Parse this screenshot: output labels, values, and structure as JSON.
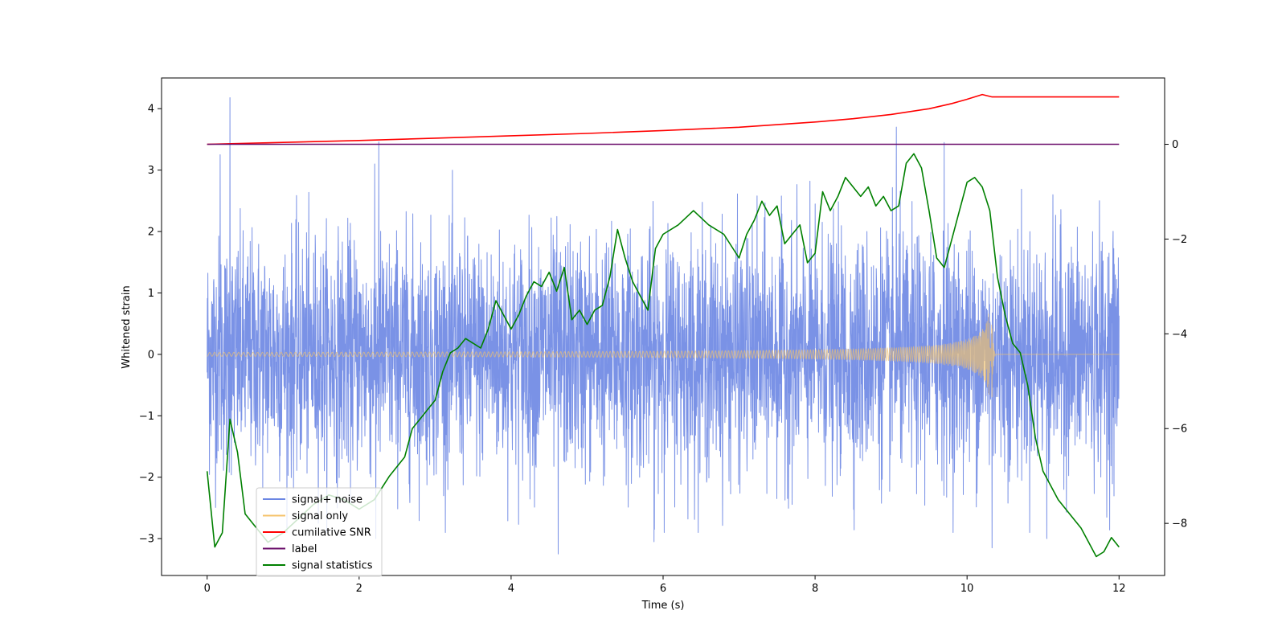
{
  "chart_data": {
    "type": "line",
    "title": "",
    "xlabel": "Time (s)",
    "ylabel": "Whitened strain",
    "y2label": "",
    "xlim": [
      -0.6,
      12.6
    ],
    "ylim": [
      -3.6,
      4.5
    ],
    "y2lim": [
      -9.1,
      1.4
    ],
    "x_ticks": [
      0,
      2,
      4,
      6,
      8,
      10,
      12
    ],
    "y_ticks": [
      -3,
      -2,
      -1,
      0,
      1,
      2,
      3,
      4
    ],
    "y2_ticks": [
      -8,
      -6,
      -4,
      -2,
      0
    ],
    "grid": false,
    "legend_position": "lower-left",
    "series": [
      {
        "name": "signal+ noise",
        "axis": "left",
        "color": "#6b86e3",
        "x_range": [
          0,
          12
        ],
        "noise_std": 0.95,
        "spikes": [
          {
            "x": 0.3,
            "y": 4.18
          },
          {
            "x": 0.17,
            "y": 3.25
          },
          {
            "x": 2.26,
            "y": 3.46
          },
          {
            "x": 9.07,
            "y": 3.7
          },
          {
            "x": 9.7,
            "y": 3.45
          },
          {
            "x": 4.62,
            "y": -3.25
          },
          {
            "x": 10.33,
            "y": -3.15
          },
          {
            "x": 5.88,
            "y": -3.05
          },
          {
            "x": 2.22,
            "y": -3.0
          },
          {
            "x": 11.05,
            "y": -3.0
          }
        ]
      },
      {
        "name": "signal only",
        "axis": "left",
        "color": "#f5c36b",
        "x_range": [
          0,
          12
        ],
        "merger_time": 10.33,
        "peak_amplitude": 0.7,
        "start_amplitude": 0.025
      },
      {
        "name": "cumilative SNR",
        "axis": "right",
        "color": "#ff0000",
        "x": [
          0,
          1,
          2,
          3,
          4,
          5,
          6,
          7,
          8,
          8.5,
          9,
          9.5,
          9.8,
          10,
          10.2,
          10.33,
          11,
          12
        ],
        "y": [
          0,
          0.04,
          0.08,
          0.13,
          0.18,
          0.23,
          0.29,
          0.36,
          0.47,
          0.54,
          0.63,
          0.75,
          0.86,
          0.95,
          1.05,
          1.0,
          1.0,
          1.0
        ]
      },
      {
        "name": "label",
        "axis": "right",
        "color": "#6a0d6a",
        "x": [
          0,
          12
        ],
        "y": [
          0,
          0
        ]
      },
      {
        "name": "signal statistics",
        "axis": "right",
        "color": "#008000",
        "x": [
          0,
          0.1,
          0.2,
          0.3,
          0.4,
          0.5,
          0.6,
          0.7,
          0.8,
          1.0,
          1.2,
          1.4,
          1.6,
          1.8,
          2.0,
          2.2,
          2.4,
          2.6,
          2.7,
          2.8,
          2.9,
          3.0,
          3.1,
          3.2,
          3.3,
          3.4,
          3.5,
          3.6,
          3.7,
          3.8,
          4.0,
          4.1,
          4.2,
          4.3,
          4.4,
          4.5,
          4.6,
          4.7,
          4.8,
          4.9,
          5.0,
          5.1,
          5.2,
          5.3,
          5.4,
          5.5,
          5.6,
          5.7,
          5.8,
          5.9,
          6.0,
          6.2,
          6.4,
          6.6,
          6.8,
          7.0,
          7.1,
          7.2,
          7.3,
          7.4,
          7.5,
          7.6,
          7.7,
          7.8,
          7.9,
          8.0,
          8.1,
          8.2,
          8.3,
          8.4,
          8.5,
          8.6,
          8.7,
          8.8,
          8.9,
          9.0,
          9.1,
          9.2,
          9.3,
          9.4,
          9.5,
          9.6,
          9.7,
          9.8,
          9.9,
          10.0,
          10.1,
          10.2,
          10.3,
          10.4,
          10.5,
          10.6,
          10.7,
          10.8,
          10.9,
          11.0,
          11.2,
          11.4,
          11.5,
          11.6,
          11.7,
          11.8,
          11.9,
          12.0
        ],
        "y": [
          -6.9,
          -8.5,
          -8.2,
          -5.8,
          -6.5,
          -7.8,
          -8.0,
          -8.2,
          -8.4,
          -8.2,
          -7.9,
          -7.6,
          -7.4,
          -7.5,
          -7.7,
          -7.5,
          -7.0,
          -6.6,
          -6.0,
          -5.8,
          -5.6,
          -5.4,
          -4.8,
          -4.4,
          -4.3,
          -4.1,
          -4.2,
          -4.3,
          -3.9,
          -3.3,
          -3.9,
          -3.6,
          -3.2,
          -2.9,
          -3.0,
          -2.7,
          -3.1,
          -2.6,
          -3.7,
          -3.5,
          -3.8,
          -3.5,
          -3.4,
          -2.8,
          -1.8,
          -2.4,
          -2.9,
          -3.2,
          -3.5,
          -2.2,
          -1.9,
          -1.7,
          -1.4,
          -1.7,
          -1.9,
          -2.4,
          -1.9,
          -1.6,
          -1.2,
          -1.5,
          -1.3,
          -2.1,
          -1.9,
          -1.7,
          -2.5,
          -2.3,
          -1.0,
          -1.4,
          -1.1,
          -0.7,
          -0.9,
          -1.1,
          -0.9,
          -1.3,
          -1.1,
          -1.4,
          -1.3,
          -0.4,
          -0.2,
          -0.5,
          -1.4,
          -2.4,
          -2.6,
          -2.0,
          -1.4,
          -0.8,
          -0.7,
          -0.9,
          -1.4,
          -2.8,
          -3.6,
          -4.2,
          -4.4,
          -5.1,
          -6.2,
          -6.9,
          -7.5,
          -7.9,
          -8.1,
          -8.4,
          -8.7,
          -8.6,
          -8.3,
          -8.5
        ]
      }
    ]
  }
}
